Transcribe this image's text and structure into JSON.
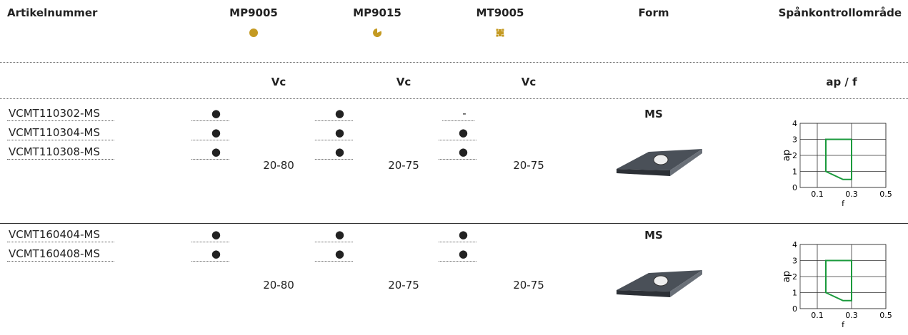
{
  "header": {
    "columns": [
      "Artikelnummer",
      "MP9005",
      "MP9015",
      "MT9005",
      "Form",
      "Spånkontrollområde"
    ]
  },
  "subheader": [
    "Vc",
    "Vc",
    "Vc",
    "ap / f"
  ],
  "groups": [
    {
      "rows": [
        {
          "article": "VCMT110302-MS",
          "marks": [
            "●",
            "●",
            "-"
          ]
        },
        {
          "article": "VCMT110304-MS",
          "marks": [
            "●",
            "●",
            "●"
          ]
        },
        {
          "article": "VCMT110308-MS",
          "marks": [
            "●",
            "●",
            "●"
          ]
        }
      ],
      "vc": [
        "20-80",
        "20-75",
        "20-75"
      ],
      "form": "MS",
      "chart": {
        "type": "area",
        "xlabel": "f",
        "ylabel": "ap",
        "xlim": [
          0,
          0.5
        ],
        "ylim": [
          0,
          4
        ],
        "xticks": [
          0.1,
          0.3,
          0.5
        ],
        "yticks": [
          0,
          1,
          2,
          3,
          4
        ],
        "color": "#1a9a3c",
        "region": {
          "x": [
            0.15,
            0.3,
            0.3,
            0.25,
            0.15
          ],
          "y": [
            3,
            3,
            0.5,
            0.5,
            1
          ]
        }
      }
    },
    {
      "rows": [
        {
          "article": "VCMT160404-MS",
          "marks": [
            "●",
            "●",
            "●"
          ]
        },
        {
          "article": "VCMT160408-MS",
          "marks": [
            "●",
            "●",
            "●"
          ]
        }
      ],
      "vc": [
        "20-80",
        "20-75",
        "20-75"
      ],
      "form": "MS",
      "chart": {
        "type": "area",
        "xlabel": "f",
        "ylabel": "ap",
        "xlim": [
          0,
          0.5
        ],
        "ylim": [
          0,
          4
        ],
        "xticks": [
          0.1,
          0.3,
          0.5
        ],
        "yticks": [
          0,
          1,
          2,
          3,
          4
        ],
        "color": "#1a9a3c",
        "region": {
          "x": [
            0.15,
            0.3,
            0.3,
            0.25,
            0.15
          ],
          "y": [
            3,
            3,
            0.5,
            0.5,
            1
          ]
        }
      }
    }
  ]
}
